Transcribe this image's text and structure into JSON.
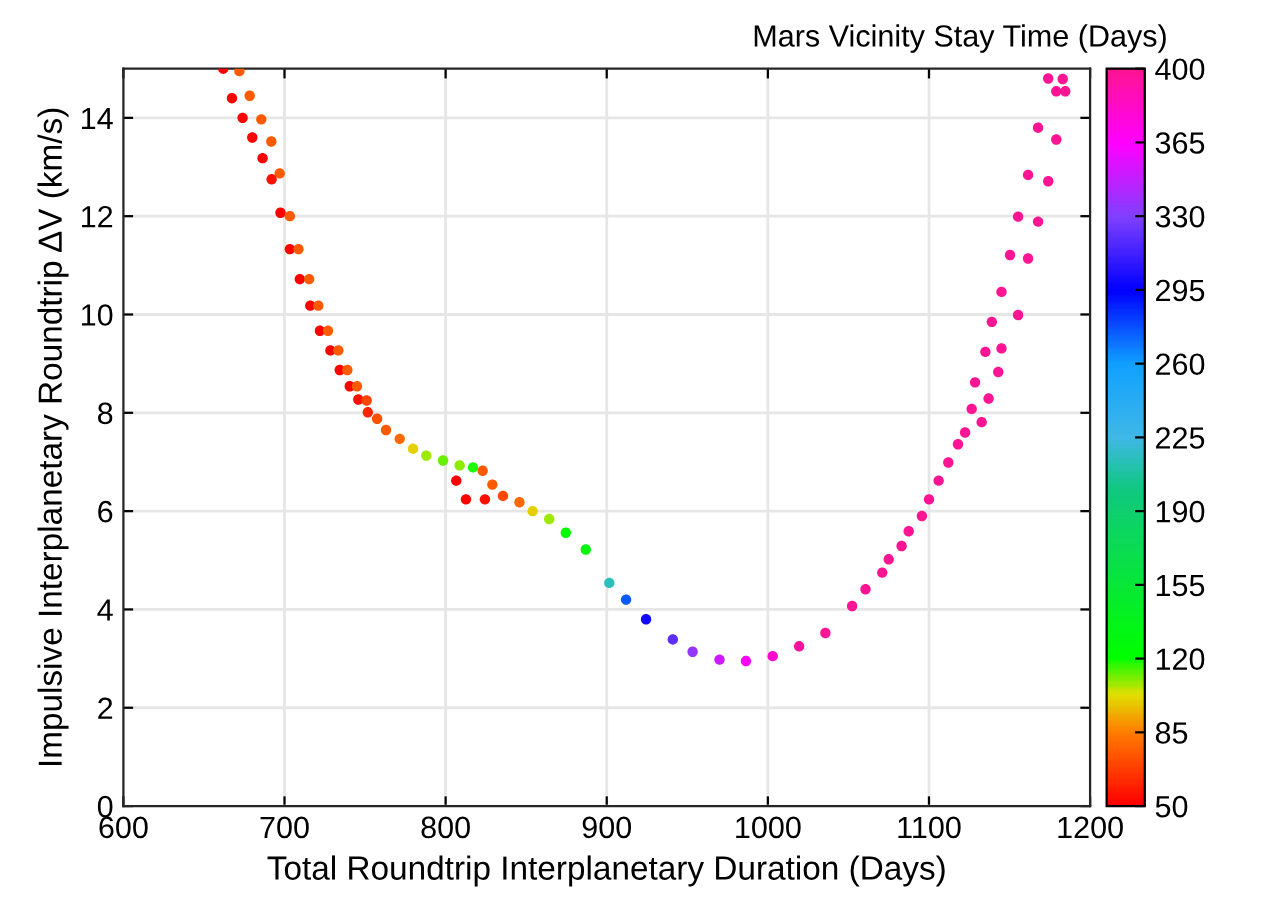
{
  "chart_data": {
    "type": "scatter",
    "xlabel": "Total Roundtrip Interplanetary Duration (Days)",
    "ylabel": "Impulsive Interplanetary Roundtrip ΔV (km/s)",
    "clabel": "Mars Vicinity Stay Time (Days)",
    "xlim": [
      600,
      1200
    ],
    "xticks": [
      600,
      700,
      800,
      900,
      1000,
      1100,
      1200
    ],
    "ylim": [
      0,
      15
    ],
    "yticks": [
      0,
      2,
      4,
      6,
      8,
      10,
      12,
      14
    ],
    "clim": [
      50,
      400
    ],
    "cticks": [
      50,
      85,
      120,
      155,
      190,
      225,
      260,
      295,
      330,
      365,
      400
    ],
    "grid": true,
    "marker": "circle",
    "x": [
      662,
      672,
      667.4,
      678.4,
      674,
      685.6,
      680,
      691.8,
      686.4,
      697,
      692,
      697.5,
      703.3,
      703.3,
      708.7,
      709.5,
      715.3,
      716,
      721,
      722,
      727,
      728.5,
      733.4,
      734.3,
      739,
      740.5,
      745,
      745.8,
      751,
      751.7,
      757.5,
      763,
      771.5,
      779.8,
      788,
      798.4,
      808.7,
      817,
      806.6,
      823,
      812.6,
      829,
      824.4,
      835.6,
      845.8,
      854,
      864.3,
      874.6,
      887,
      901.6,
      912,
      924.4,
      941,
      953.3,
      970,
      986.4,
      1003,
      1019.4,
      1035.7,
      1052.3,
      1060.6,
      1071,
      1075,
      1083,
      1087.4,
      1095.6,
      1100,
      1106,
      1112,
      1118,
      1122.4,
      1126.5,
      1132.7,
      1128.6,
      1137,
      1135,
      1143,
      1139,
      1145,
      1145,
      1155.3,
      1150.3,
      1161.5,
      1155.3,
      1167.7,
      1161.5,
      1174,
      1167.7,
      1179,
      1174,
      1179,
      1183,
      1184.6
    ],
    "values": [
      15.0,
      14.95,
      14.4,
      14.45,
      14.0,
      13.97,
      13.6,
      13.52,
      13.18,
      12.87,
      12.75,
      12.07,
      12.0,
      11.33,
      11.33,
      10.72,
      10.72,
      10.18,
      10.18,
      9.67,
      9.67,
      9.27,
      9.27,
      8.87,
      8.87,
      8.54,
      8.54,
      8.27,
      8.25,
      8.01,
      7.88,
      7.65,
      7.47,
      7.27,
      7.13,
      7.03,
      6.93,
      6.89,
      6.62,
      6.82,
      6.24,
      6.54,
      6.24,
      6.31,
      6.18,
      6.0,
      5.84,
      5.56,
      5.22,
      4.54,
      4.2,
      3.8,
      3.39,
      3.14,
      2.98,
      2.95,
      3.05,
      3.25,
      3.52,
      4.07,
      4.41,
      4.75,
      5.02,
      5.29,
      5.59,
      5.9,
      6.24,
      6.62,
      6.99,
      7.36,
      7.6,
      8.08,
      7.81,
      8.62,
      8.29,
      9.24,
      8.83,
      9.85,
      9.31,
      10.46,
      9.99,
      11.21,
      11.14,
      11.99,
      11.89,
      12.84,
      12.71,
      13.8,
      13.56,
      14.8,
      14.54,
      14.79,
      14.54
    ],
    "cvalues": [
      50,
      75,
      50,
      75,
      50,
      75,
      50,
      75,
      50,
      75,
      55,
      50,
      75,
      50,
      75,
      50,
      75,
      50,
      75,
      50,
      75,
      50,
      75,
      50,
      75,
      50,
      75,
      55,
      70,
      60,
      72,
      75,
      80,
      100,
      108,
      112,
      110,
      118,
      50,
      75,
      50,
      75,
      55,
      70,
      80,
      100,
      108,
      120,
      130,
      215,
      275,
      300,
      320,
      335,
      350,
      365,
      380,
      395,
      400,
      400,
      400,
      400,
      400,
      400,
      400,
      400,
      400,
      400,
      400,
      400,
      400,
      400,
      400,
      400,
      400,
      400,
      400,
      400,
      400,
      400,
      400,
      400,
      400,
      400,
      400,
      400,
      400,
      400,
      400,
      400,
      400,
      400,
      400
    ]
  }
}
